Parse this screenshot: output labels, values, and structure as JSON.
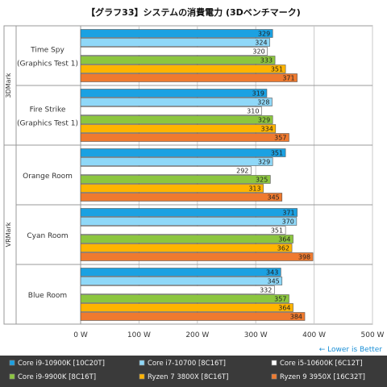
{
  "chart_data": {
    "type": "bar",
    "orientation": "horizontal",
    "title": "【グラフ33】システムの消費電力 (3Dベンチマーク)",
    "groups": [
      {
        "name": "3DMark",
        "categories": [
          "Time Spy (Graphics Test 1)",
          "Fire Strike (Graphics Test 1)"
        ]
      },
      {
        "name": "VRMark",
        "categories": [
          "Orange Room",
          "Cyan Room",
          "Blue Room"
        ]
      }
    ],
    "category_lines": [
      [
        "Time Spy",
        "(Graphics Test 1)"
      ],
      [
        "Fire Strike",
        "(Graphics Test 1)"
      ],
      [
        "Orange Room"
      ],
      [
        "Cyan Room"
      ],
      [
        "Blue Room"
      ]
    ],
    "series": [
      {
        "name": "Core i9-10900K [10C20T]",
        "color": "#1ba1e2",
        "values": [
          329,
          319,
          351,
          371,
          343
        ]
      },
      {
        "name": "Core i7-10700 [8C16T]",
        "color": "#8fd8f8",
        "values": [
          324,
          328,
          329,
          370,
          345
        ]
      },
      {
        "name": "Core i5-10600K [6C12T]",
        "color": "#ffffff",
        "values": [
          320,
          310,
          292,
          351,
          332
        ]
      },
      {
        "name": "Core i9-9900K [8C16T]",
        "color": "#8cc63f",
        "values": [
          333,
          329,
          325,
          364,
          357
        ]
      },
      {
        "name": "Ryzen 7 3800X [8C16T]",
        "color": "#ffb400",
        "values": [
          351,
          334,
          313,
          362,
          364
        ]
      },
      {
        "name": "Ryzen 9 3950X [16C32T]",
        "color": "#ef7a2f",
        "values": [
          371,
          357,
          345,
          398,
          384
        ]
      }
    ],
    "xlim": [
      0,
      500
    ],
    "x_ticks": [
      0,
      100,
      200,
      300,
      400,
      500
    ],
    "x_unit": "W",
    "annotation": "← Lower is Better",
    "grid": true,
    "legend_position": "bottom"
  }
}
